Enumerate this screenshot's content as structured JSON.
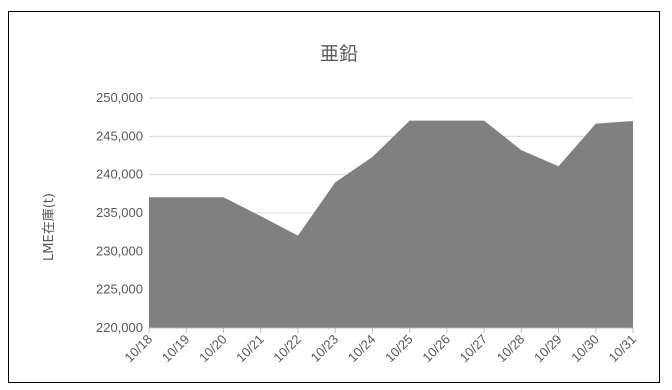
{
  "chart_data": {
    "type": "area",
    "title": "亜鉛",
    "xlabel": "",
    "ylabel": "LME在庫(t)",
    "categories": [
      "10/18",
      "10/19",
      "10/20",
      "10/21",
      "10/22",
      "10/23",
      "10/24",
      "10/25",
      "10/26",
      "10/27",
      "10/28",
      "10/29",
      "10/30",
      "10/31"
    ],
    "values": [
      237050,
      237050,
      237050,
      234600,
      232050,
      239000,
      242300,
      247050,
      247050,
      247050,
      243200,
      241100,
      246650,
      247000
    ],
    "ylim": [
      220000,
      250000
    ],
    "yticks": [
      "220,000",
      "225,000",
      "230,000",
      "235,000",
      "240,000",
      "245,000",
      "250,000"
    ],
    "grid": true,
    "legend": "none",
    "colors": {
      "fill": "#808080",
      "grid": "#d9d9d9",
      "axis": "#bfbfbf",
      "text": "#595959"
    }
  }
}
